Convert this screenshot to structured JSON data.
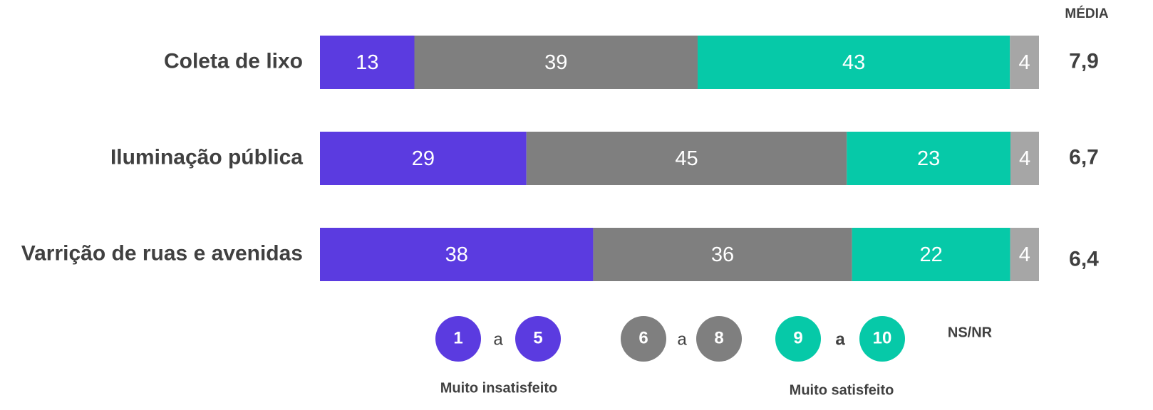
{
  "chart_data": {
    "type": "stacked-bar-percent",
    "categories": [
      "Coleta de lixo",
      "Iluminação pública",
      "Varrição de ruas e avenidas"
    ],
    "series": [
      {
        "color": "#5b3be0",
        "values": [
          13,
          29,
          38
        ]
      },
      {
        "color": "#7f7f7f",
        "values": [
          39,
          45,
          36
        ]
      },
      {
        "color": "#06c9a8",
        "values": [
          43,
          23,
          22
        ]
      },
      {
        "color": "#a6a6a6",
        "values": [
          4,
          4,
          4
        ]
      }
    ],
    "media": {
      "label": "MÉDIA",
      "values": [
        7.9,
        6.7,
        6.4
      ],
      "value_labels": [
        "7,9",
        "6,7",
        "6,4"
      ]
    },
    "legend": [
      {
        "from": "1",
        "sep": "a",
        "to": "5"
      },
      {
        "from": "6",
        "sep": "a",
        "to": "8"
      },
      {
        "from": "9",
        "sep": "a",
        "to": "10"
      },
      {
        "label": "NS/NR"
      }
    ],
    "annotations": [
      "Muito insatisfeito",
      "Muito satisfeito"
    ]
  }
}
